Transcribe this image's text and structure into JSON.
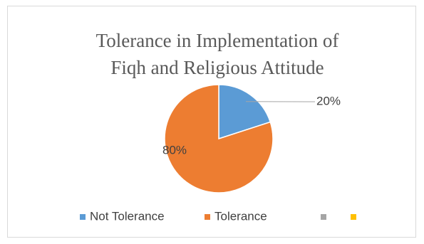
{
  "chart_data": {
    "type": "pie",
    "title": "Tolerance in Implementation of Fiqh and Religious Attitude",
    "categories": [
      "Not Tolerance",
      "Tolerance",
      null,
      null
    ],
    "values": [
      20,
      80,
      null,
      null
    ],
    "value_labels": [
      "20%",
      "80%",
      null,
      null
    ],
    "colors": [
      "#5b9bd5",
      "#ed7d31",
      "#a5a5a5",
      "#ffc000"
    ],
    "legend": "bottom"
  }
}
